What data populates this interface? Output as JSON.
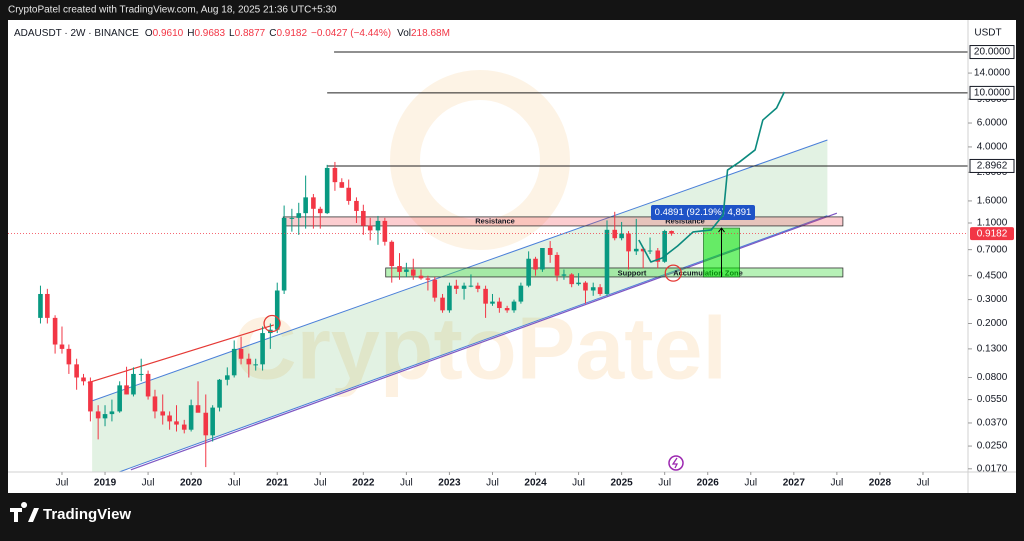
{
  "header": "CryptoPatel created with TradingView.com, Aug 18, 2025 21:36 UTC+5:30",
  "brand": "TradingView",
  "chart_data": {
    "type": "candlestick",
    "symbol": "ADAUSDT · 2W · BINANCE",
    "legend": [
      {
        "key": "O",
        "value": "0.9610"
      },
      {
        "key": "H",
        "value": "0.9683"
      },
      {
        "key": "L",
        "value": "0.8877"
      },
      {
        "key": "C",
        "value": "0.9182"
      }
    ],
    "change": "−0.0427 (−4.44%)",
    "volume": {
      "key": "Vol",
      "value": "218.68M"
    },
    "currency": "USDT",
    "watermark": "CryptoPatel",
    "log_scale": true,
    "up_color": "#089981",
    "down_color": "#f23645",
    "xlim": [
      2017.873,
      2029.023
    ],
    "ylim": [
      0.0161,
      33.3
    ],
    "xticks": [
      {
        "value": 2018.5,
        "label": "Jul"
      },
      2019,
      {
        "value": 2019.5,
        "label": "Jul"
      },
      2020,
      {
        "value": 2020.5,
        "label": "Jul"
      },
      2021,
      {
        "value": 2021.5,
        "label": "Jul"
      },
      2022,
      {
        "value": 2022.5,
        "label": "Jul"
      },
      2023,
      {
        "value": 2023.5,
        "label": "Jul"
      },
      2024,
      {
        "value": 2024.5,
        "label": "Jul"
      },
      2025,
      {
        "value": 2025.5,
        "label": "Jul"
      },
      2026,
      {
        "value": 2026.5,
        "label": "Jul"
      },
      2027,
      {
        "value": 2027.5,
        "label": "Jul"
      },
      2028,
      {
        "value": 2028.5,
        "label": "Jul"
      }
    ],
    "yticks": [
      {
        "value": 14,
        "label": "14.0000"
      },
      {
        "value": 9,
        "label": "9.0000"
      },
      {
        "value": 6,
        "label": "6.0000"
      },
      {
        "value": 4,
        "label": "4.0000"
      },
      {
        "value": 2.6,
        "label": "2.6000"
      },
      {
        "value": 1.6,
        "label": "1.6000"
      },
      {
        "value": 1.1,
        "label": "1.1000"
      },
      {
        "value": 0.7,
        "label": "0.7000"
      },
      {
        "value": 0.45,
        "label": "0.4500"
      },
      {
        "value": 0.3,
        "label": "0.3000"
      },
      {
        "value": 0.2,
        "label": "0.2000"
      },
      {
        "value": 0.13,
        "label": "0.1300"
      },
      {
        "value": 0.08,
        "label": "0.0800"
      },
      {
        "value": 0.055,
        "label": "0.0550"
      },
      {
        "value": 0.037,
        "label": "0.0370"
      },
      {
        "value": 0.025,
        "label": "0.0250"
      },
      {
        "value": 0.017,
        "label": "0.0170"
      }
    ],
    "price_lines": [
      {
        "value": 20,
        "label": "20.0000",
        "from": 2021.66
      },
      {
        "value": 10,
        "label": "10.0000",
        "from": 2021.58
      },
      {
        "value": 2.8962,
        "label": "2.8962",
        "from": 2021.58
      }
    ],
    "last_price": {
      "value": 0.9182,
      "label": "0.9182"
    },
    "x": [
      2018.25,
      2018.33,
      2018.42,
      2018.5,
      2018.58,
      2018.67,
      2018.75,
      2018.83,
      2018.92,
      2019.0,
      2019.08,
      2019.17,
      2019.25,
      2019.33,
      2019.42,
      2019.5,
      2019.58,
      2019.67,
      2019.75,
      2019.83,
      2019.92,
      2020.0,
      2020.08,
      2020.17,
      2020.25,
      2020.33,
      2020.42,
      2020.5,
      2020.58,
      2020.67,
      2020.75,
      2020.83,
      2020.92,
      2021.0,
      2021.08,
      2021.17,
      2021.25,
      2021.33,
      2021.42,
      2021.5,
      2021.58,
      2021.67,
      2021.75,
      2021.83,
      2021.92,
      2022.0,
      2022.08,
      2022.17,
      2022.25,
      2022.33,
      2022.42,
      2022.5,
      2022.58,
      2022.67,
      2022.75,
      2022.83,
      2022.92,
      2023.0,
      2023.08,
      2023.17,
      2023.25,
      2023.33,
      2023.42,
      2023.5,
      2023.58,
      2023.67,
      2023.75,
      2023.83,
      2023.92,
      2024.0,
      2024.08,
      2024.17,
      2024.25,
      2024.33,
      2024.42,
      2024.5,
      2024.58,
      2024.67,
      2024.75,
      2024.83,
      2024.92,
      2025.0,
      2025.08,
      2025.17,
      2025.25,
      2025.33,
      2025.42,
      2025.5,
      2025.58
    ],
    "candles": [
      [
        0.22,
        0.38,
        0.2,
        0.33
      ],
      [
        0.33,
        0.36,
        0.2,
        0.22
      ],
      [
        0.22,
        0.23,
        0.12,
        0.14
      ],
      [
        0.14,
        0.19,
        0.12,
        0.13
      ],
      [
        0.13,
        0.14,
        0.085,
        0.1
      ],
      [
        0.1,
        0.11,
        0.065,
        0.08
      ],
      [
        0.08,
        0.085,
        0.07,
        0.075
      ],
      [
        0.075,
        0.08,
        0.038,
        0.045
      ],
      [
        0.045,
        0.05,
        0.028,
        0.04
      ],
      [
        0.04,
        0.05,
        0.035,
        0.043
      ],
      [
        0.043,
        0.055,
        0.038,
        0.045
      ],
      [
        0.045,
        0.075,
        0.044,
        0.07
      ],
      [
        0.07,
        0.096,
        0.06,
        0.06
      ],
      [
        0.06,
        0.095,
        0.058,
        0.085
      ],
      [
        0.085,
        0.11,
        0.075,
        0.085
      ],
      [
        0.085,
        0.09,
        0.055,
        0.058
      ],
      [
        0.058,
        0.065,
        0.04,
        0.045
      ],
      [
        0.045,
        0.06,
        0.036,
        0.042
      ],
      [
        0.042,
        0.045,
        0.033,
        0.038
      ],
      [
        0.038,
        0.05,
        0.032,
        0.036
      ],
      [
        0.036,
        0.039,
        0.031,
        0.033
      ],
      [
        0.033,
        0.055,
        0.032,
        0.05
      ],
      [
        0.05,
        0.075,
        0.045,
        0.044
      ],
      [
        0.044,
        0.06,
        0.0175,
        0.03
      ],
      [
        0.03,
        0.05,
        0.027,
        0.048
      ],
      [
        0.048,
        0.078,
        0.045,
        0.077
      ],
      [
        0.077,
        0.095,
        0.07,
        0.083
      ],
      [
        0.083,
        0.15,
        0.08,
        0.13
      ],
      [
        0.13,
        0.16,
        0.1,
        0.11
      ],
      [
        0.11,
        0.12,
        0.08,
        0.1
      ],
      [
        0.1,
        0.11,
        0.09,
        0.1
      ],
      [
        0.1,
        0.19,
        0.09,
        0.17
      ],
      [
        0.17,
        0.2,
        0.13,
        0.18
      ],
      [
        0.18,
        0.4,
        0.17,
        0.35
      ],
      [
        0.35,
        1.48,
        0.33,
        1.2
      ],
      [
        1.2,
        1.4,
        0.95,
        1.2
      ],
      [
        1.2,
        1.55,
        0.9,
        1.3
      ],
      [
        1.3,
        2.46,
        1.0,
        1.7
      ],
      [
        1.7,
        1.8,
        1.0,
        1.4
      ],
      [
        1.4,
        1.45,
        1.0,
        1.3
      ],
      [
        1.3,
        2.95,
        1.28,
        2.8
      ],
      [
        2.8,
        3.1,
        1.9,
        2.2
      ],
      [
        2.2,
        2.35,
        2.0,
        2.0
      ],
      [
        2.0,
        2.3,
        1.5,
        1.6
      ],
      [
        1.6,
        1.7,
        1.1,
        1.35
      ],
      [
        1.35,
        1.5,
        0.9,
        1.05
      ],
      [
        1.05,
        1.2,
        0.82,
        0.97
      ],
      [
        0.97,
        1.24,
        0.76,
        1.14
      ],
      [
        1.14,
        1.2,
        0.75,
        0.8
      ],
      [
        0.8,
        0.82,
        0.4,
        0.53
      ],
      [
        0.53,
        0.66,
        0.42,
        0.48
      ],
      [
        0.48,
        0.56,
        0.44,
        0.5
      ],
      [
        0.5,
        0.6,
        0.42,
        0.45
      ],
      [
        0.45,
        0.5,
        0.42,
        0.43
      ],
      [
        0.43,
        0.45,
        0.35,
        0.42
      ],
      [
        0.42,
        0.44,
        0.29,
        0.31
      ],
      [
        0.31,
        0.33,
        0.24,
        0.25
      ],
      [
        0.25,
        0.4,
        0.24,
        0.38
      ],
      [
        0.38,
        0.42,
        0.33,
        0.36
      ],
      [
        0.36,
        0.4,
        0.3,
        0.38
      ],
      [
        0.38,
        0.46,
        0.37,
        0.38
      ],
      [
        0.38,
        0.4,
        0.34,
        0.36
      ],
      [
        0.36,
        0.38,
        0.22,
        0.28
      ],
      [
        0.28,
        0.33,
        0.27,
        0.29
      ],
      [
        0.29,
        0.31,
        0.24,
        0.26
      ],
      [
        0.26,
        0.27,
        0.24,
        0.25
      ],
      [
        0.25,
        0.3,
        0.24,
        0.29
      ],
      [
        0.29,
        0.4,
        0.28,
        0.38
      ],
      [
        0.38,
        0.68,
        0.37,
        0.6
      ],
      [
        0.6,
        0.62,
        0.45,
        0.5
      ],
      [
        0.5,
        0.72,
        0.48,
        0.72
      ],
      [
        0.72,
        0.81,
        0.56,
        0.64
      ],
      [
        0.64,
        0.67,
        0.41,
        0.45
      ],
      [
        0.45,
        0.5,
        0.42,
        0.46
      ],
      [
        0.46,
        0.47,
        0.37,
        0.39
      ],
      [
        0.39,
        0.47,
        0.38,
        0.4
      ],
      [
        0.4,
        0.41,
        0.28,
        0.35
      ],
      [
        0.35,
        0.4,
        0.32,
        0.37
      ],
      [
        0.37,
        0.39,
        0.32,
        0.33
      ],
      [
        0.33,
        1.15,
        0.32,
        0.98
      ],
      [
        0.98,
        1.33,
        0.82,
        0.85
      ],
      [
        0.85,
        1.12,
        0.82,
        0.92
      ],
      [
        0.92,
        0.96,
        0.5,
        0.68
      ],
      [
        0.68,
        1.18,
        0.64,
        0.71
      ],
      [
        0.71,
        0.73,
        0.51,
        0.68
      ],
      [
        0.68,
        0.86,
        0.65,
        0.69
      ],
      [
        0.69,
        0.72,
        0.51,
        0.57
      ],
      [
        0.57,
        0.98,
        0.56,
        0.961
      ],
      [
        0.961,
        0.9683,
        0.8877,
        0.9182
      ]
    ],
    "channel": {
      "color": "#4a7fd9",
      "upper": [
        [
          2018.85,
          0.0538
        ],
        [
          2027.39,
          4.5
        ]
      ],
      "lower": [
        [
          2018.85,
          0.01364
        ],
        [
          2027.39,
          1.247
        ]
      ]
    },
    "support_line": {
      "color": "#7e57c2",
      "points": [
        [
          2019.3,
          0.0167
        ],
        [
          2027.5,
          1.3
        ]
      ]
    },
    "trend_line": {
      "color": "#e53935",
      "points": [
        [
          2018.8,
          0.0731
        ],
        [
          2020.96,
          0.195
        ]
      ]
    },
    "circles": [
      [
        2020.94,
        0.2
      ],
      [
        2025.6,
        0.47
      ]
    ],
    "zones": [
      {
        "labels": [
          "Resistance",
          "Resistance"
        ],
        "t": [
          2021.07,
          2027.57
        ],
        "v": [
          1.047,
          1.22
        ],
        "fill": "rgba(242,54,69,0.25)"
      },
      {
        "labels": [
          "Support",
          "Accumulation Zone"
        ],
        "t": [
          2022.26,
          2027.57
        ],
        "v": [
          0.4406,
          0.513
        ],
        "fill": "rgba(76,220,76,0.4)"
      }
    ],
    "measure": {
      "label": "0.4891 (92.19%) 4,891",
      "t": [
        2025.95,
        2026.37
      ],
      "v": [
        0.44,
        1.01
      ]
    },
    "projection": {
      "color": "#0b8a7e",
      "points": [
        [
          2025.2,
          0.825
        ],
        [
          2025.34,
          0.568
        ],
        [
          2025.47,
          0.608
        ],
        [
          2025.65,
          0.745
        ],
        [
          2025.83,
          0.945
        ],
        [
          2026.04,
          0.978
        ],
        [
          2026.18,
          1.26
        ],
        [
          2026.23,
          2.7
        ],
        [
          2026.37,
          3.1
        ],
        [
          2026.55,
          3.8
        ],
        [
          2026.64,
          6.31
        ],
        [
          2026.8,
          7.74
        ],
        [
          2026.89,
          10.15
        ]
      ]
    }
  }
}
